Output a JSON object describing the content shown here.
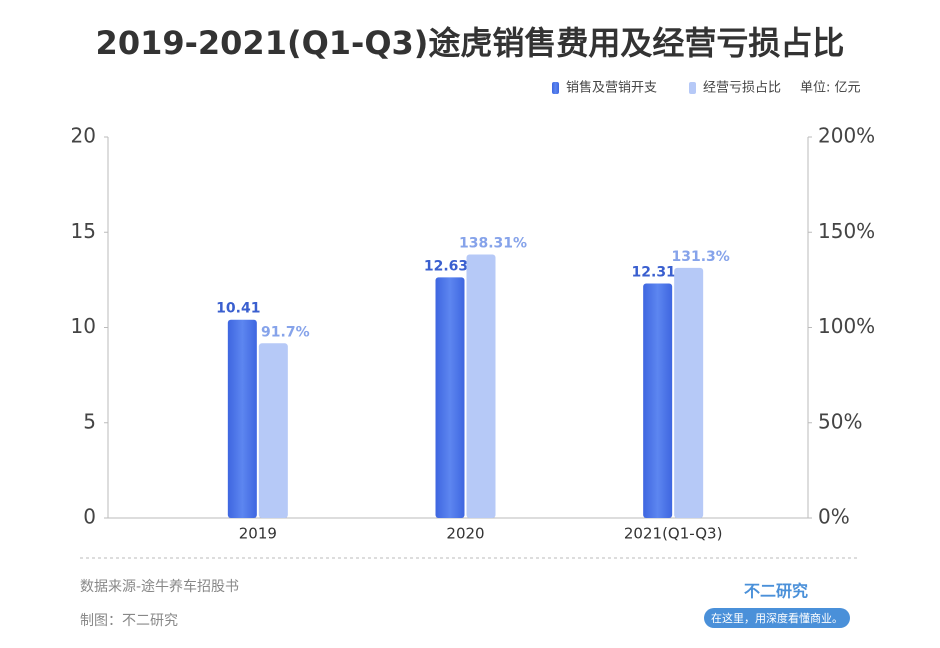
{
  "chart_data": {
    "type": "bar",
    "title": "2019-2021(Q1-Q3)途虎销售费用及经营亏损占比",
    "unit": "单位: 亿元",
    "categories": [
      "2019",
      "2020",
      "2021(Q1-Q3)"
    ],
    "series": [
      {
        "name": "销售及营销开支",
        "color": "#4a74e8",
        "values": [
          10.41,
          12.63,
          12.31
        ]
      },
      {
        "name": "经营亏损占比",
        "color": "#b6c9f7",
        "axis": "y2",
        "values": [
          91.7,
          138.31,
          131.3
        ],
        "value_labels": [
          "91.7%",
          "138.31%",
          "131.3%"
        ]
      }
    ],
    "ylim": [
      0,
      20
    ],
    "yticks": [
      0,
      5,
      10,
      15,
      20
    ],
    "y2lim": [
      0,
      200
    ],
    "y2ticks": [
      {
        "value": 0,
        "label": "0%"
      },
      {
        "value": 50,
        "label": "50%"
      },
      {
        "value": 100,
        "label": "100%"
      },
      {
        "value": 150,
        "label": "150%"
      },
      {
        "value": 200,
        "label": "200%"
      }
    ],
    "source": "数据来源-途牛养车招股书",
    "credit": "制图：不二研究",
    "brand": "不二研究",
    "slogan": "在这里，用深度看懂商业。"
  }
}
